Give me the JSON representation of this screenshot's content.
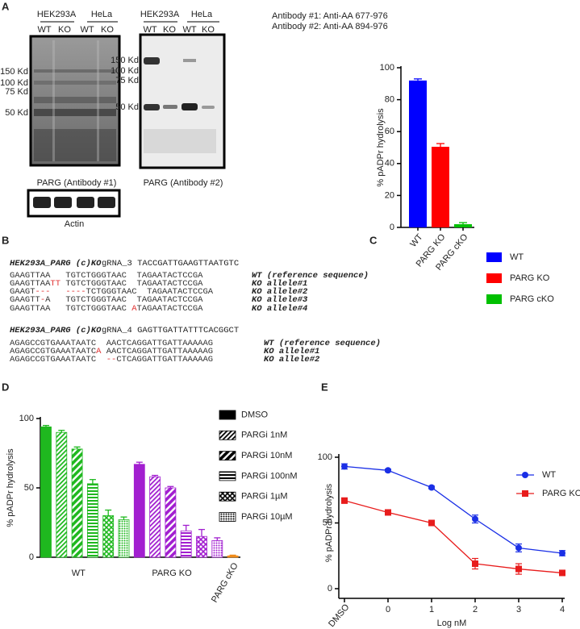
{
  "figure_a": {
    "label": "A",
    "blot1": {
      "cell_lines": [
        "HEK293A",
        "HeLa"
      ],
      "lanes": [
        "WT",
        "KO",
        "WT",
        "KO"
      ],
      "markers": [
        "150 Kd",
        "100 Kd",
        "75 Kd",
        "50 Kd"
      ],
      "caption": "PARG (Antibody #1)"
    },
    "actin_caption": "Actin",
    "blot2": {
      "cell_lines": [
        "HEK293A",
        "HeLa"
      ],
      "lanes": [
        "WT",
        "KO",
        "WT",
        "KO"
      ],
      "markers": [
        "150 Kd",
        "100 Kd",
        "75 Kd",
        "50 Kd"
      ],
      "caption": "PARG (Antibody #2)"
    },
    "antibodies": [
      "Antibody #1: Anti-AA 677-976",
      "Antibody #2: Anti-AA 894-976"
    ]
  },
  "figure_b": {
    "label": "B",
    "highlight_color": "#e03030",
    "blocks": [
      {
        "sample": "HEK293A_PARG (c)KO",
        "guide": "gRNA_3 TACCGATTGAAGTTAATGTC",
        "rows": [
          {
            "segments": [
              "GAAGTTAA   TGTCTGGGTAAC  TAGAATACTCCGA"
            ],
            "allele": "WT (reference sequence)"
          },
          {
            "segments": [
              "GAAGTTAA",
              "TT",
              " TGTCTGGGTAAC  TAGAATACTCCGA"
            ],
            "allele": "KO allele#1"
          },
          {
            "segments": [
              "GAAGT",
              "---",
              "   ",
              "----",
              "TCTGGGTAAC  TAGAATACTCCGA"
            ],
            "allele": "KO allele#2"
          },
          {
            "segments": [
              "GAAGTT",
              "-",
              "A   TGTCTGGGTAAC  TAGAATACTCCGA"
            ],
            "allele": "KO allele#3"
          },
          {
            "segments": [
              "GAAGTTAA   TGTCTGGGTAAC ",
              "A",
              "TAGAATACTCCGA"
            ],
            "allele": "KO allele#4"
          }
        ]
      },
      {
        "sample": "HEK293A_PARG (c)KO",
        "guide": "gRNA_4 GAGTTGATTATTTCACGGCT",
        "rows": [
          {
            "segments": [
              "AGAGCCGTGAAATAATC  AACTCAGGATTGATTAAAAAG"
            ],
            "allele": "WT (reference sequence)"
          },
          {
            "segments": [
              "AGAGCCGTGAAATAATC",
              "A",
              " AACTCAGGATTGATTAAAAAG"
            ],
            "allele": "KO allele#1"
          },
          {
            "segments": [
              "AGAGCCGTGAAATAATC  ",
              "--",
              "CTCAGGATTGATTAAAAAG"
            ],
            "allele": "KO allele#2"
          }
        ]
      }
    ]
  },
  "chart_data": [
    {
      "panel": "C",
      "type": "bar",
      "categories": [
        "WT",
        "PARG KO",
        "PARG cKO"
      ],
      "values": [
        92,
        50.5,
        2
      ],
      "errors": [
        1,
        2,
        1
      ],
      "colors": [
        "#0000ff",
        "#ff0000",
        "#00c000"
      ],
      "ylabel": "% pADPr hydrolysis",
      "ylim": [
        0,
        100
      ],
      "yticks": [
        0,
        20,
        40,
        60,
        80,
        100
      ],
      "legend": "right"
    },
    {
      "panel": "D",
      "type": "grouped_bar",
      "categories": [
        "WT",
        "PARG KO",
        "PARG cKO"
      ],
      "category_colors": [
        "#1fb81f",
        "#a21fd0",
        "#f08c1a"
      ],
      "series": [
        {
          "name": "DMSO",
          "pattern": "solid",
          "values": [
            94,
            67,
            1
          ],
          "errors": [
            1,
            1.5,
            0.5
          ]
        },
        {
          "name": "PARGi 1nM",
          "pattern": "thin-diagonal",
          "values": [
            90,
            58,
            null
          ],
          "errors": [
            1.5,
            1,
            null
          ]
        },
        {
          "name": "PARGi 10nM",
          "pattern": "thick-diagonal",
          "values": [
            78,
            50,
            null
          ],
          "errors": [
            1.5,
            1,
            null
          ]
        },
        {
          "name": "PARGi 100nM",
          "pattern": "horizontal",
          "values": [
            53,
            19,
            null
          ],
          "errors": [
            3,
            4,
            null
          ]
        },
        {
          "name": "PARGi 1µM",
          "pattern": "cross",
          "values": [
            30,
            15,
            null
          ],
          "errors": [
            4,
            5,
            null
          ]
        },
        {
          "name": "PARGi 10µM",
          "pattern": "dots",
          "values": [
            27,
            12,
            null
          ],
          "errors": [
            2,
            2,
            null
          ]
        }
      ],
      "ylabel": "% pADPr hydrolysis",
      "ylim": [
        0,
        100
      ],
      "yticks": [
        0,
        50,
        100
      ],
      "legend": "right"
    },
    {
      "panel": "E",
      "type": "line",
      "categories": [
        "DMSO",
        "0",
        "1",
        "2",
        "3",
        "4"
      ],
      "xlabel": "Log nM",
      "ylabel": "% pADPr hydrolysis",
      "series": [
        {
          "name": "WT",
          "color": "#1a2fe6",
          "marker": "circle",
          "values": [
            93,
            90,
            77,
            53,
            31,
            27
          ],
          "errors": [
            2,
            1,
            1,
            3,
            3,
            2
          ]
        },
        {
          "name": "PARG KO",
          "color": "#e81c1c",
          "marker": "square",
          "values": [
            67,
            58,
            50,
            19,
            15,
            12
          ],
          "errors": [
            2,
            1,
            1,
            4,
            4,
            1
          ]
        }
      ],
      "ylim": [
        0,
        100
      ],
      "yticks": [
        0,
        50,
        100
      ],
      "legend": "upper right"
    }
  ]
}
